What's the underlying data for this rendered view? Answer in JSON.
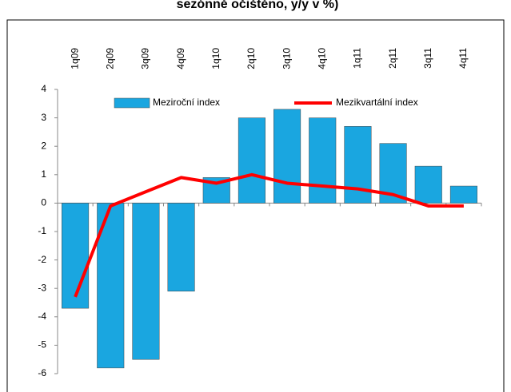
{
  "chart_data": {
    "type": "bar",
    "title": "sezónně očištěno, y/y v %)",
    "categories": [
      "1q09",
      "2q09",
      "3q09",
      "4q09",
      "1q10",
      "2q10",
      "3q10",
      "4q10",
      "1q11",
      "2q11",
      "3q11",
      "4q11"
    ],
    "series": [
      {
        "name": "Meziroční index",
        "type": "bar",
        "color": "#1aa6e0",
        "values": [
          -3.7,
          -5.8,
          -5.5,
          -3.1,
          0.9,
          3.0,
          3.3,
          3.0,
          2.7,
          2.1,
          1.3,
          0.6
        ]
      },
      {
        "name": "Mezikvartální index",
        "type": "line",
        "color": "#ff0000",
        "values": [
          -3.3,
          -0.1,
          0.4,
          0.9,
          0.7,
          1.0,
          0.7,
          0.6,
          0.5,
          0.3,
          -0.1,
          -0.1
        ]
      }
    ],
    "ylim": [
      -6,
      4
    ],
    "yticks": [
      -6,
      -5,
      -4,
      -3,
      -2,
      -1,
      0,
      1,
      2,
      3,
      4
    ]
  }
}
